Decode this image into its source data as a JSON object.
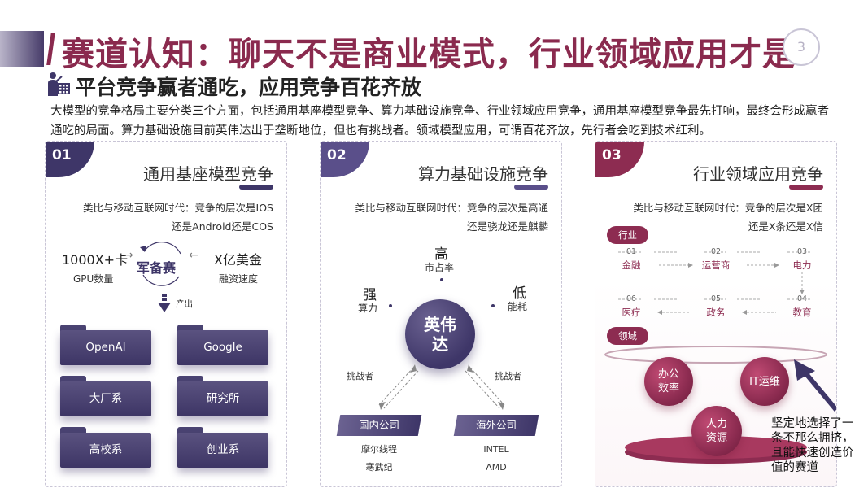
{
  "header": {
    "title": "赛道认知：聊天不是商业模式，行业领域应用才是",
    "page_number": "3",
    "subtitle": "平台竞争赢者通吃，应用竞争百花齐放",
    "subtitle_icon": "presenter-icon",
    "intro": "大模型的竞争格局主要分类三个方面，包括通用基座模型竞争、算力基础设施竞争、行业领域应用竞争，通用基座模型竞争最先打响，最终会形成赢者通吃的局面。算力基础设施目前英伟达出于垄断地位，但也有挑战者。领域模型应用，可谓百花齐放，先行者会吃到技术红利。"
  },
  "colors": {
    "navy": "#3e3668",
    "purple": "#5a4f8a",
    "crimson": "#8d2c51",
    "title": "#8a2a4e"
  },
  "panel1": {
    "number": "01",
    "title": "通用基座模型竞争",
    "desc_line1": "类比与移动互联网时代：竞争的层次是IOS",
    "desc_line2": "还是Android还是COS",
    "left_value": "1000X+卡",
    "left_caption": "GPU数量",
    "center": "军备赛",
    "right_value": "X亿美金",
    "right_caption": "融资速度",
    "output_label": "产出",
    "folders": [
      "OpenAI",
      "Google",
      "大厂系",
      "研究所",
      "高校系",
      "创业系"
    ]
  },
  "panel2": {
    "number": "02",
    "title": "算力基础设施竞争",
    "desc_line1": "类比与移动互联网时代：竞争的层次是高通",
    "desc_line2": "还是骁龙还是麒麟",
    "top_big": "高",
    "top_small": "市占率",
    "left_big": "强",
    "left_small": "算力",
    "right_big": "低",
    "right_small": "能耗",
    "center": "英伟\n达",
    "challenger_left": "挑战者",
    "challenger_right": "挑战者",
    "domestic_label": "国内公司",
    "domestic_items": [
      "摩尔线程",
      "寒武纪",
      "..."
    ],
    "overseas_label": "海外公司",
    "overseas_items": [
      "INTEL",
      "AMD",
      "..."
    ]
  },
  "panel3": {
    "number": "03",
    "title": "行业领域应用竞争",
    "desc_line1": "类比与移动互联网时代：竞争的层次是X团",
    "desc_line2": "还是X条还是X信",
    "industry_label": "行业",
    "flow": [
      {
        "n": "01",
        "t": "金融"
      },
      {
        "n": "02",
        "t": "运营商"
      },
      {
        "n": "03",
        "t": "电力"
      },
      {
        "n": "04",
        "t": "教育"
      },
      {
        "n": "05",
        "t": "政务"
      },
      {
        "n": "06",
        "t": "医疗"
      }
    ],
    "domain_label": "领域",
    "bubbles": [
      "办公\n效率",
      "IT运维",
      "人力\n资源"
    ],
    "note": "坚定地选择了一条不那么拥挤，且能快速创造价值的赛道"
  }
}
